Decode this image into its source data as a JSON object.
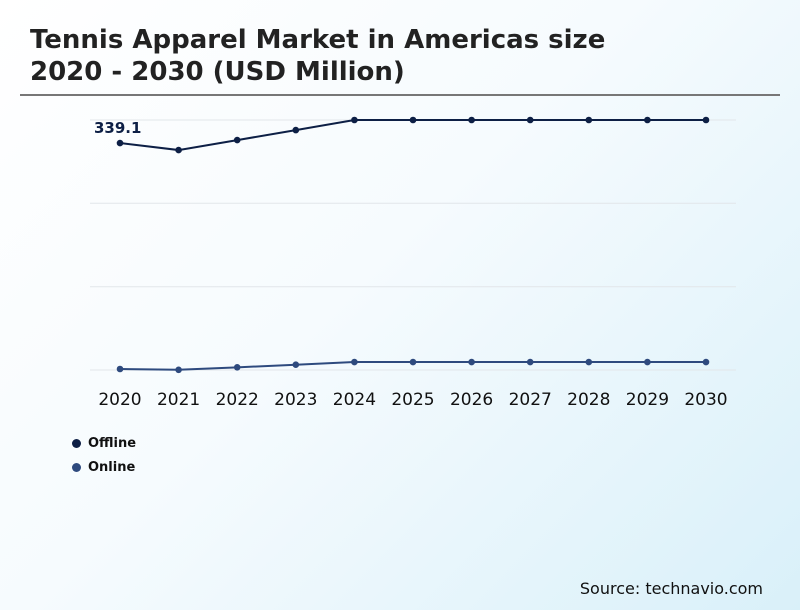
{
  "title_line1": "Tennis Apparel Market in Americas size",
  "title_line2": "2020 - 2030 (USD Million)",
  "source": "Source: technavio.com",
  "chart_data": {
    "type": "line",
    "title": "Tennis Apparel Market in Americas size 2020 - 2030 (USD Million)",
    "x": [
      "2020",
      "2021",
      "2022",
      "2023",
      "2024",
      "2025",
      "2026",
      "2027",
      "2028",
      "2029",
      "2030"
    ],
    "series": [
      {
        "name": "Offline",
        "color": "#0d1f45",
        "values": [
          339.1,
          328.6,
          343.5,
          358.4,
          373.5,
          373.5,
          373.5,
          373.5,
          373.5,
          373.5,
          373.5
        ]
      },
      {
        "name": "Online",
        "color": "#2e4a7e",
        "values": [
          1.5,
          0.3,
          4.0,
          7.9,
          11.9,
          11.9,
          11.9,
          11.9,
          11.9,
          11.9,
          11.9
        ]
      }
    ],
    "data_labels": [
      {
        "series": "Offline",
        "x": "2020",
        "text": "339.1"
      }
    ],
    "ylim": [
      0,
      373.5
    ],
    "grid": true,
    "legend": "bottom-left"
  }
}
